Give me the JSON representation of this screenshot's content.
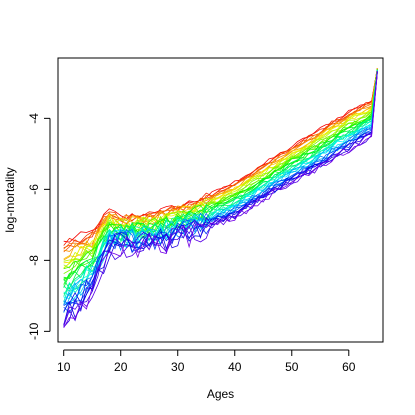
{
  "chart_data": {
    "type": "line",
    "title": "",
    "xlabel": "Ages",
    "ylabel": "log-mortality",
    "xlim": [
      9,
      66
    ],
    "ylim": [
      -10.3,
      -2.3
    ],
    "x_ticks": [
      10,
      20,
      30,
      40,
      50,
      60
    ],
    "y_ticks": [
      -10,
      -8,
      -6,
      -4
    ],
    "grid": false,
    "legend": "none",
    "color_scheme": "rainbow (first curves red, last curves violet)",
    "n_series": 40,
    "first_curve": {
      "x": [
        10,
        15,
        18,
        20,
        25,
        30,
        35,
        40,
        45,
        50,
        55,
        60,
        64,
        65
      ],
      "y": [
        -7.5,
        -7.2,
        -6.6,
        -6.8,
        -6.7,
        -6.5,
        -6.2,
        -5.8,
        -5.3,
        -4.8,
        -4.3,
        -3.8,
        -3.5,
        -2.6
      ]
    },
    "last_curve": {
      "x": [
        10,
        15,
        18,
        20,
        25,
        30,
        35,
        40,
        45,
        50,
        55,
        60,
        64,
        65
      ],
      "y": [
        -9.9,
        -8.9,
        -7.8,
        -7.6,
        -7.6,
        -7.4,
        -7.1,
        -6.8,
        -6.3,
        -5.8,
        -5.4,
        -4.9,
        -4.5,
        -2.7
      ]
    }
  }
}
